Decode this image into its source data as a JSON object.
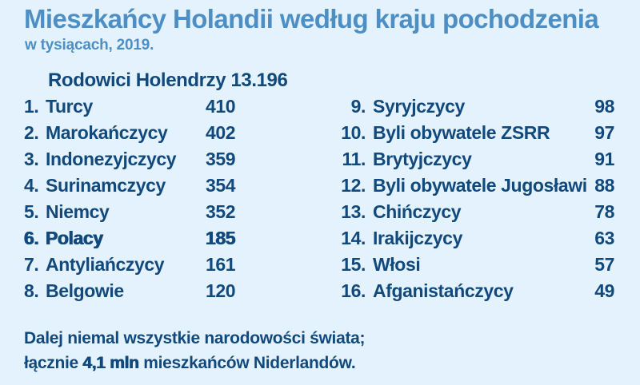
{
  "title": "Mieszkańcy Holandii według kraju pochodzenia",
  "subtitle": "w tysiącach, 2019.",
  "table": {
    "native": {
      "label": "Rodowici Holendrzy",
      "value": "13.196"
    },
    "rows_left": [
      {
        "rank": "1.",
        "name": "Turcy",
        "value": "410",
        "bold": false
      },
      {
        "rank": "2.",
        "name": "Marokańczycy",
        "value": "402",
        "bold": false
      },
      {
        "rank": "3.",
        "name": "Indonezyjczycy",
        "value": "359",
        "bold": false
      },
      {
        "rank": "4.",
        "name": "Surinamczycy",
        "value": "354",
        "bold": false
      },
      {
        "rank": "5.",
        "name": "Niemcy",
        "value": "352",
        "bold": false
      },
      {
        "rank": "6.",
        "name": "Polacy",
        "value": "185",
        "bold": true
      },
      {
        "rank": "7.",
        "name": "Antyliańczycy",
        "value": "161",
        "bold": false
      },
      {
        "rank": "8.",
        "name": "Belgowie",
        "value": "120",
        "bold": false
      }
    ],
    "rows_right": [
      {
        "rank": "9.",
        "name": "Syryjczycy",
        "value": "98",
        "bold": false
      },
      {
        "rank": "10.",
        "name": "Byli obywatele ZSRR",
        "value": "97",
        "bold": false
      },
      {
        "rank": "11.",
        "name": "Brytyjczycy",
        "value": "91",
        "bold": false
      },
      {
        "rank": "12.",
        "name": "Byli obywatele Jugosławi",
        "value": "88",
        "bold": false
      },
      {
        "rank": "13.",
        "name": "Chińczycy",
        "value": "78",
        "bold": false
      },
      {
        "rank": "14.",
        "name": "Irakijczycy",
        "value": "63",
        "bold": false
      },
      {
        "rank": "15.",
        "name": "Włosi",
        "value": "57",
        "bold": false
      },
      {
        "rank": "16.",
        "name": "Afganistańczycy",
        "value": "49",
        "bold": false
      }
    ]
  },
  "footer": {
    "line1": "Dalej niemal wszystkie narodowości świata;",
    "line2_prefix": "łącznie ",
    "line2_bold": "4,1 mln",
    "line2_suffix": " mieszkańców Niderlandów."
  },
  "colors": {
    "background": "#e4f2fd",
    "title_blue": "#4d8fc5",
    "text_navy": "#11497d"
  },
  "chart_data": {
    "type": "table",
    "title": "Mieszkańcy Holandii według kraju pochodzenia",
    "subtitle": "w tysiącach, 2019.",
    "unit": "thousands",
    "year": 2019,
    "native_dutch": {
      "label": "Rodowici Holendrzy",
      "value": 13196
    },
    "categories": [
      "Turcy",
      "Marokańczycy",
      "Indonezyjczycy",
      "Surinamczycy",
      "Niemcy",
      "Polacy",
      "Antyliańczycy",
      "Belgowie",
      "Syryjczycy",
      "Byli obywatele ZSRR",
      "Brytyjczycy",
      "Byli obywatele Jugosławi",
      "Chińczycy",
      "Irakijczycy",
      "Włosi",
      "Afganistańczycy"
    ],
    "values": [
      410,
      402,
      359,
      354,
      352,
      185,
      161,
      120,
      98,
      97,
      91,
      88,
      78,
      63,
      57,
      49
    ],
    "highlighted_category": "Polacy",
    "note": "Dalej niemal wszystkie narodowości świata; łącznie 4,1 mln mieszkańców Niderlandów."
  }
}
